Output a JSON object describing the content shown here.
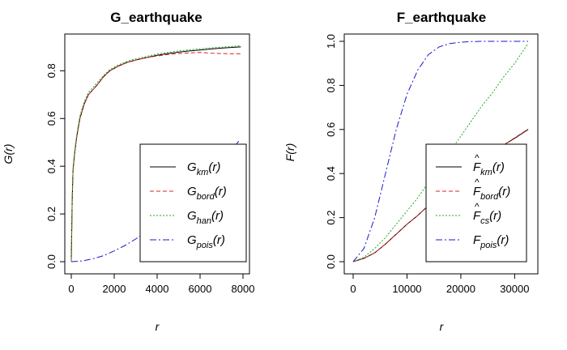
{
  "chart_data": [
    {
      "type": "line",
      "title": "G_earthquake",
      "xlabel": "r",
      "ylabel": "G(r)",
      "xlim": [
        0,
        8000
      ],
      "ylim": [
        0,
        0.92
      ],
      "xticks": [
        "0",
        "2000",
        "4000",
        "6000",
        "8000"
      ],
      "yticks": [
        "0.0",
        "0.2",
        "0.4",
        "0.6",
        "0.8"
      ],
      "legend_position": "bottom-right",
      "series": [
        {
          "name": "Ĝ_km(r)",
          "legend_main": "G",
          "legend_sub": "km",
          "color": "#000000",
          "dash": "",
          "x": [
            0,
            40,
            80,
            150,
            250,
            400,
            600,
            800,
            1000,
            1200,
            1500,
            1800,
            2200,
            2600,
            3000,
            3500,
            4000,
            4500,
            5000,
            5500,
            6000,
            6500,
            7000,
            7500,
            7900
          ],
          "y": [
            0,
            0.25,
            0.38,
            0.45,
            0.52,
            0.6,
            0.66,
            0.7,
            0.72,
            0.74,
            0.775,
            0.8,
            0.82,
            0.835,
            0.845,
            0.855,
            0.865,
            0.872,
            0.878,
            0.883,
            0.887,
            0.891,
            0.895,
            0.898,
            0.9
          ]
        },
        {
          "name": "Ĝ_bord(r)",
          "legend_main": "G",
          "legend_sub": "bord",
          "color": "#df2020",
          "dash": "5,3",
          "x": [
            0,
            40,
            80,
            150,
            250,
            400,
            600,
            800,
            1000,
            1200,
            1500,
            1800,
            2200,
            2600,
            3000,
            3500,
            4000,
            4500,
            5000,
            5500,
            6000,
            6500,
            7000,
            7500,
            7900
          ],
          "y": [
            0,
            0.25,
            0.38,
            0.45,
            0.52,
            0.6,
            0.66,
            0.7,
            0.72,
            0.74,
            0.775,
            0.8,
            0.82,
            0.835,
            0.845,
            0.855,
            0.862,
            0.868,
            0.872,
            0.875,
            0.877,
            0.874,
            0.872,
            0.871,
            0.871
          ]
        },
        {
          "name": "Ĝ_han(r)",
          "legend_main": "G",
          "legend_sub": "han",
          "color": "#22a822",
          "dash": "2,2",
          "x": [
            0,
            40,
            80,
            150,
            250,
            400,
            600,
            800,
            1000,
            1200,
            1500,
            1800,
            2200,
            2600,
            3000,
            3500,
            4000,
            4500,
            5000,
            5500,
            6000,
            6500,
            7000,
            7500,
            7900
          ],
          "y": [
            0,
            0.26,
            0.39,
            0.46,
            0.53,
            0.61,
            0.67,
            0.71,
            0.73,
            0.75,
            0.78,
            0.805,
            0.825,
            0.84,
            0.85,
            0.86,
            0.87,
            0.877,
            0.883,
            0.888,
            0.892,
            0.896,
            0.899,
            0.902,
            0.905
          ]
        },
        {
          "name": "G_pois(r)",
          "legend_main": "G",
          "legend_sub": "pois",
          "color": "#1a1acc",
          "dash": "8,3,2,3",
          "x": [
            0,
            500,
            1000,
            1500,
            2000,
            2500,
            3000,
            3500,
            4000,
            4500,
            5000,
            5500,
            6000,
            6500,
            7000,
            7500,
            7800
          ],
          "y": [
            0,
            0.003,
            0.012,
            0.025,
            0.045,
            0.068,
            0.095,
            0.125,
            0.16,
            0.2,
            0.24,
            0.285,
            0.33,
            0.375,
            0.42,
            0.47,
            0.505
          ]
        }
      ]
    },
    {
      "type": "line",
      "title": "F_earthquake",
      "xlabel": "r",
      "ylabel": "F(r)",
      "xlim": [
        0,
        32500
      ],
      "ylim": [
        0,
        1.0
      ],
      "xticks": [
        "0",
        "10000",
        "20000",
        "30000"
      ],
      "yticks": [
        "0.0",
        "0.2",
        "0.4",
        "0.6",
        "0.8",
        "1.0"
      ],
      "legend_position": "bottom-right",
      "series": [
        {
          "name": "F̂_km(r)",
          "legend_main": "F",
          "legend_sub": "km",
          "color": "#000000",
          "dash": "",
          "x": [
            0,
            2000,
            4000,
            6000,
            8000,
            10000,
            12000,
            14000,
            16000,
            18000,
            20000,
            22000,
            24000,
            26000,
            28000,
            30000,
            32500
          ],
          "y": [
            0,
            0.015,
            0.04,
            0.08,
            0.125,
            0.17,
            0.21,
            0.255,
            0.3,
            0.345,
            0.385,
            0.425,
            0.46,
            0.495,
            0.53,
            0.56,
            0.6
          ]
        },
        {
          "name": "F̂_bord(r)",
          "legend_main": "F",
          "legend_sub": "bord",
          "color": "#df2020",
          "dash": "5,3",
          "x": [
            0,
            2000,
            4000,
            6000,
            8000,
            10000,
            12000,
            14000,
            16000,
            18000,
            20000,
            22000,
            24000,
            26000,
            28000,
            30000,
            32500
          ],
          "y": [
            0,
            0.015,
            0.04,
            0.08,
            0.125,
            0.17,
            0.21,
            0.255,
            0.3,
            0.345,
            0.385,
            0.425,
            0.46,
            0.495,
            0.53,
            0.562,
            0.602
          ]
        },
        {
          "name": "F̂_cs(r)",
          "legend_main": "F",
          "legend_sub": "cs",
          "color": "#22a822",
          "dash": "2,2",
          "x": [
            0,
            2000,
            4000,
            6000,
            8000,
            10000,
            12000,
            14000,
            16000,
            18000,
            20000,
            22000,
            24000,
            26000,
            28000,
            30000,
            32500
          ],
          "y": [
            0,
            0.02,
            0.06,
            0.11,
            0.17,
            0.23,
            0.29,
            0.36,
            0.43,
            0.5,
            0.57,
            0.64,
            0.71,
            0.77,
            0.84,
            0.9,
            0.99
          ]
        },
        {
          "name": "F_pois(r)",
          "legend_main": "F",
          "legend_sub": "pois",
          "color": "#1a1acc",
          "dash": "8,3,2,3",
          "x": [
            0,
            2000,
            4000,
            6000,
            8000,
            10000,
            12000,
            14000,
            16000,
            18000,
            20000,
            22000,
            24000,
            26000,
            28000,
            30000,
            32500
          ],
          "y": [
            0,
            0.06,
            0.2,
            0.4,
            0.6,
            0.76,
            0.87,
            0.94,
            0.975,
            0.99,
            0.996,
            0.999,
            1.0,
            1.0,
            1.0,
            1.0,
            1.0
          ]
        }
      ]
    }
  ]
}
